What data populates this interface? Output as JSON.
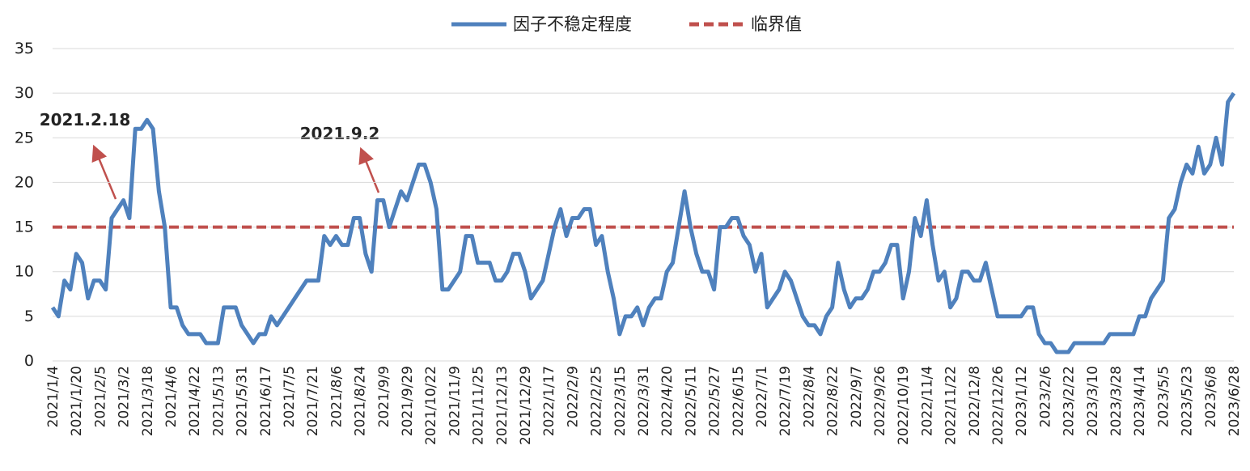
{
  "chart_data": {
    "type": "line",
    "categories": [
      "2021/1/4",
      null,
      null,
      null,
      "2021/1/20",
      null,
      null,
      null,
      "2021/2/5",
      null,
      null,
      null,
      "2021/3/2",
      null,
      null,
      null,
      "2021/3/18",
      null,
      null,
      null,
      "2021/4/6",
      null,
      null,
      null,
      "2021/4/22",
      null,
      null,
      null,
      "2021/5/13",
      null,
      null,
      null,
      "2021/5/31",
      null,
      null,
      null,
      "2021/6/17",
      null,
      null,
      null,
      "2021/7/5",
      null,
      null,
      null,
      "2021/7/21",
      null,
      null,
      null,
      "2021/8/6",
      null,
      null,
      null,
      "2021/8/24",
      null,
      null,
      null,
      "2021/9/9",
      null,
      null,
      null,
      "2021/9/29",
      null,
      null,
      null,
      "2021/10/22",
      null,
      null,
      null,
      "2021/11/9",
      null,
      null,
      null,
      "2021/11/25",
      null,
      null,
      null,
      "2021/12/13",
      null,
      null,
      null,
      "2021/12/29",
      null,
      null,
      null,
      "2022/1/17",
      null,
      null,
      null,
      "2022/2/9",
      null,
      null,
      null,
      "2022/2/25",
      null,
      null,
      null,
      "2022/3/15",
      null,
      null,
      null,
      "2022/3/31",
      null,
      null,
      null,
      "2022/4/20",
      null,
      null,
      null,
      "2022/5/11",
      null,
      null,
      null,
      "2022/5/27",
      null,
      null,
      null,
      "2022/6/15",
      null,
      null,
      null,
      "2022/7/1",
      null,
      null,
      null,
      "2022/7/19",
      null,
      null,
      null,
      "2022/8/4",
      null,
      null,
      null,
      "2022/8/22",
      null,
      null,
      null,
      "2022/9/7",
      null,
      null,
      null,
      "2022/9/26",
      null,
      null,
      null,
      "2022/10/19",
      null,
      null,
      null,
      "2022/11/4",
      null,
      null,
      null,
      "2022/11/22",
      null,
      null,
      null,
      "2022/12/8",
      null,
      null,
      null,
      "2022/12/26",
      null,
      null,
      null,
      "2023/1/12",
      null,
      null,
      null,
      "2023/2/6",
      null,
      null,
      null,
      "2023/2/22",
      null,
      null,
      null,
      "2023/3/10",
      null,
      null,
      null,
      "2023/3/28",
      null,
      null,
      null,
      "2023/4/14",
      null,
      null,
      null,
      "2023/5/5",
      null,
      null,
      null,
      "2023/5/23",
      null,
      null,
      null,
      "2023/6/8",
      null,
      null,
      null,
      "2023/6/28"
    ],
    "series": [
      {
        "name": "因子不稳定程度",
        "color": "#4f81bd",
        "values": [
          6,
          5,
          9,
          8,
          12,
          11,
          7,
          9,
          9,
          8,
          16,
          17,
          18,
          16,
          26,
          26,
          27,
          26,
          19,
          15,
          6,
          6,
          4,
          3,
          3,
          3,
          2,
          2,
          2,
          6,
          6,
          6,
          4,
          3,
          2,
          3,
          3,
          5,
          4,
          5,
          6,
          7,
          8,
          9,
          9,
          9,
          14,
          13,
          14,
          13,
          13,
          16,
          16,
          12,
          10,
          18,
          18,
          15,
          17,
          19,
          18,
          20,
          22,
          22,
          20,
          17,
          8,
          8,
          9,
          10,
          14,
          14,
          11,
          11,
          11,
          9,
          9,
          10,
          12,
          12,
          10,
          7,
          8,
          9,
          12,
          15,
          17,
          14,
          16,
          16,
          17,
          17,
          13,
          14,
          10,
          7,
          3,
          5,
          5,
          6,
          4,
          6,
          7,
          7,
          10,
          11,
          15,
          19,
          15,
          12,
          10,
          10,
          8,
          15,
          15,
          16,
          16,
          14,
          13,
          10,
          12,
          6,
          7,
          8,
          10,
          9,
          7,
          5,
          4,
          4,
          3,
          5,
          6,
          11,
          8,
          6,
          7,
          7,
          8,
          10,
          10,
          11,
          13,
          13,
          7,
          10,
          16,
          14,
          18,
          13,
          9,
          10,
          6,
          7,
          10,
          10,
          9,
          9,
          11,
          8,
          5,
          5,
          5,
          5,
          5,
          6,
          6,
          3,
          2,
          2,
          1,
          1,
          1,
          2,
          2,
          2,
          2,
          2,
          2,
          3,
          3,
          3,
          3,
          3,
          5,
          5,
          7,
          8,
          9,
          16,
          17,
          20,
          22,
          21,
          24,
          21,
          22,
          25,
          22,
          29,
          30
        ]
      }
    ],
    "reference_line": {
      "name": "临界值",
      "value": 15,
      "color": "#c0504d"
    },
    "annotations": [
      "2021.2.18",
      "2021.9.2"
    ],
    "ylim": [
      0,
      35
    ],
    "yticks": [
      0,
      5,
      10,
      15,
      20,
      25,
      30,
      35
    ],
    "grid": true,
    "legend": "top"
  }
}
